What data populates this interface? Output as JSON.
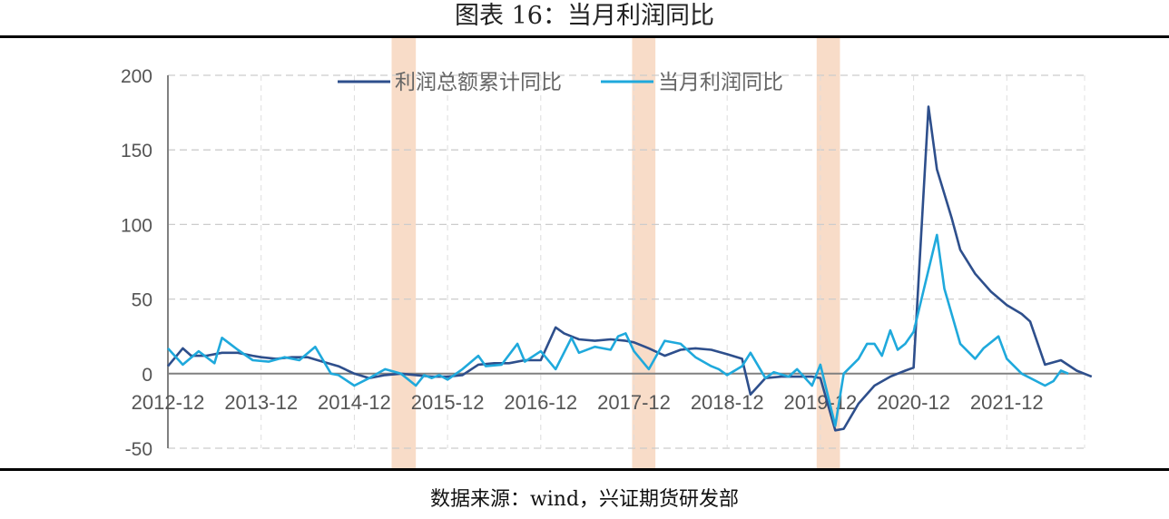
{
  "header": {
    "title": "图表 16：当月利润同比"
  },
  "footer": {
    "source": "数据来源：wind，兴证期货研发部"
  },
  "colors": {
    "cumulative": "#2e4f8c",
    "monthly": "#1fa9dc",
    "band": "#f8dcc8",
    "axis": "#808080",
    "grid": "#cccccc",
    "negative_tick": "#e00000"
  },
  "chart_data": {
    "type": "line",
    "title": "当月利润同比",
    "xlabel": "",
    "ylabel": "",
    "ylim": [
      -50,
      200
    ],
    "y_ticks": [
      {
        "value": 200,
        "label": "200"
      },
      {
        "value": 150,
        "label": "150"
      },
      {
        "value": 100,
        "label": "100"
      },
      {
        "value": 50,
        "label": "50"
      },
      {
        "value": 0,
        "label": "0"
      },
      {
        "value": -50,
        "label": "-50",
        "color": "#e00000"
      }
    ],
    "x_tick_labels": [
      "2012-12",
      "2013-12",
      "2014-12",
      "2015-12",
      "2016-12",
      "2017-12",
      "2018-12",
      "2019-12",
      "2020-12",
      "2021-12"
    ],
    "grid": true,
    "legend": {
      "position": "top-center",
      "entries": [
        "利润总额累计同比",
        "当月利润同比"
      ]
    },
    "shaded_periods": [
      {
        "start": 2015.32,
        "end": 2015.58
      },
      {
        "start": 2017.9,
        "end": 2018.15
      },
      {
        "start": 2019.88,
        "end": 2020.13
      }
    ],
    "series": [
      {
        "name": "利润总额累计同比",
        "color": "#2e4f8c",
        "x": [
          2012.92,
          2013.08,
          2013.17,
          2013.33,
          2013.5,
          2013.67,
          2013.83,
          2013.92,
          2014.08,
          2014.25,
          2014.42,
          2014.58,
          2014.75,
          2014.92,
          2015.08,
          2015.25,
          2015.42,
          2015.58,
          2015.75,
          2015.92,
          2016.08,
          2016.25,
          2016.42,
          2016.58,
          2016.75,
          2016.92,
          2017.08,
          2017.17,
          2017.33,
          2017.5,
          2017.67,
          2017.83,
          2017.92,
          2018.08,
          2018.25,
          2018.42,
          2018.58,
          2018.75,
          2018.92,
          2019.08,
          2019.17,
          2019.33,
          2019.5,
          2019.67,
          2019.83,
          2019.92,
          2020.08,
          2020.17,
          2020.33,
          2020.5,
          2020.67,
          2020.83,
          2020.92,
          2021.08,
          2021.17,
          2021.33,
          2021.42,
          2021.58,
          2021.75,
          2021.92,
          2022.08,
          2022.17,
          2022.33,
          2022.5,
          2022.67,
          2022.83
        ],
        "values": [
          5,
          17,
          12,
          12,
          14,
          14,
          12,
          11,
          10,
          11,
          11,
          8,
          5,
          0,
          -3,
          -1,
          0,
          -1,
          -2,
          -2,
          -1,
          6,
          7,
          7,
          9,
          9,
          31,
          27,
          23,
          22,
          23,
          22,
          21,
          17,
          12,
          16,
          17,
          16,
          13,
          10,
          -14,
          -3,
          -2,
          -2,
          -2,
          -3,
          -38,
          -37,
          -20,
          -8,
          -2,
          2,
          4,
          179,
          137,
          104,
          83,
          67,
          55,
          46,
          40,
          35,
          6,
          9,
          2,
          -2
        ]
      },
      {
        "name": "当月利润同比",
        "color": "#1fa9dc",
        "x": [
          2012.92,
          2013.08,
          2013.25,
          2013.42,
          2013.5,
          2013.67,
          2013.83,
          2014.0,
          2014.17,
          2014.33,
          2014.5,
          2014.67,
          2014.75,
          2014.92,
          2015.08,
          2015.25,
          2015.42,
          2015.58,
          2015.67,
          2015.75,
          2015.83,
          2015.92,
          2016.08,
          2016.25,
          2016.33,
          2016.5,
          2016.67,
          2016.75,
          2016.92,
          2017.08,
          2017.25,
          2017.33,
          2017.5,
          2017.67,
          2017.75,
          2017.83,
          2017.92,
          2018.08,
          2018.25,
          2018.42,
          2018.58,
          2018.75,
          2018.83,
          2018.92,
          2019.08,
          2019.17,
          2019.33,
          2019.42,
          2019.58,
          2019.67,
          2019.83,
          2019.92,
          2020.08,
          2020.17,
          2020.33,
          2020.42,
          2020.5,
          2020.58,
          2020.67,
          2020.75,
          2020.83,
          2020.92,
          2021.17,
          2021.25,
          2021.42,
          2021.58,
          2021.67,
          2021.83,
          2021.92,
          2022.08,
          2022.33,
          2022.42,
          2022.5,
          2022.58
        ],
        "values": [
          17,
          6,
          15,
          7,
          24,
          16,
          9,
          8,
          11,
          9,
          18,
          0,
          -1,
          -8,
          -3,
          3,
          0,
          -8,
          -1,
          -3,
          -1,
          -4,
          3,
          12,
          5,
          6,
          20,
          8,
          15,
          3,
          24,
          14,
          18,
          16,
          25,
          27,
          15,
          3,
          22,
          20,
          11,
          5,
          3,
          -1,
          5,
          14,
          -3,
          1,
          -2,
          3,
          -8,
          6,
          -35,
          0,
          10,
          20,
          20,
          12,
          29,
          16,
          20,
          28,
          93,
          57,
          20,
          10,
          17,
          25,
          10,
          0,
          -8,
          -5,
          2,
          0
        ]
      }
    ]
  }
}
